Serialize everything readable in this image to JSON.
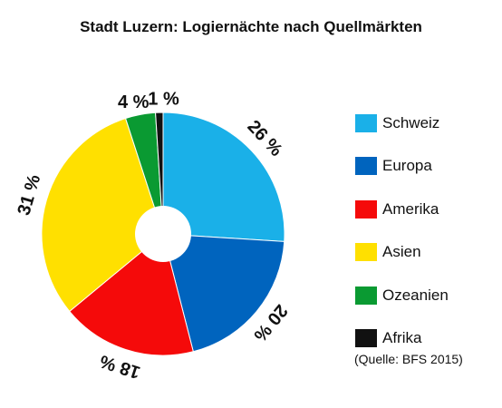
{
  "chart_data": {
    "type": "pie",
    "title": "Stadt Luzern: Logiernächte nach Quellmärkten",
    "source": "(Quelle: BFS 2015)",
    "legend_position": "right",
    "slices": [
      {
        "name": "Schweiz",
        "value": 26,
        "label": "26 %",
        "color": "#1ab0e8"
      },
      {
        "name": "Europa",
        "value": 20,
        "label": "20 %",
        "color": "#0064be"
      },
      {
        "name": "Amerika",
        "value": 18,
        "label": "18 %",
        "color": "#f50a0a"
      },
      {
        "name": "Asien",
        "value": 31,
        "label": "31 %",
        "color": "#ffe000"
      },
      {
        "name": "Ozeanien",
        "value": 4,
        "label": "4 %",
        "color": "#0a9a32"
      },
      {
        "name": "Afrika",
        "value": 1,
        "label": "1 %",
        "color": "#111111"
      }
    ]
  }
}
